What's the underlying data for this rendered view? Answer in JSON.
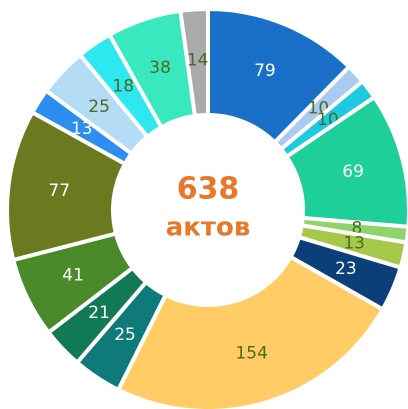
{
  "chart_data": {
    "type": "pie",
    "donut": true,
    "values": [
      79,
      10,
      10,
      69,
      8,
      13,
      23,
      154,
      25,
      21,
      41,
      77,
      13,
      25,
      18,
      38,
      14
    ],
    "colors": [
      "#1a6fc9",
      "#a9cbf2",
      "#1ec8e0",
      "#1ecf9a",
      "#8fd46a",
      "#a6c84a",
      "#0a3f7a",
      "#ffcc66",
      "#0f7a7a",
      "#117a55",
      "#4a8a2a",
      "#6b7a1e",
      "#2b8ef0",
      "#b5dcf5",
      "#2ee8f0",
      "#3ae8c0",
      "#aaaaaa"
    ],
    "total": 638,
    "total_label": "актов",
    "total_color": "#e8782a"
  }
}
